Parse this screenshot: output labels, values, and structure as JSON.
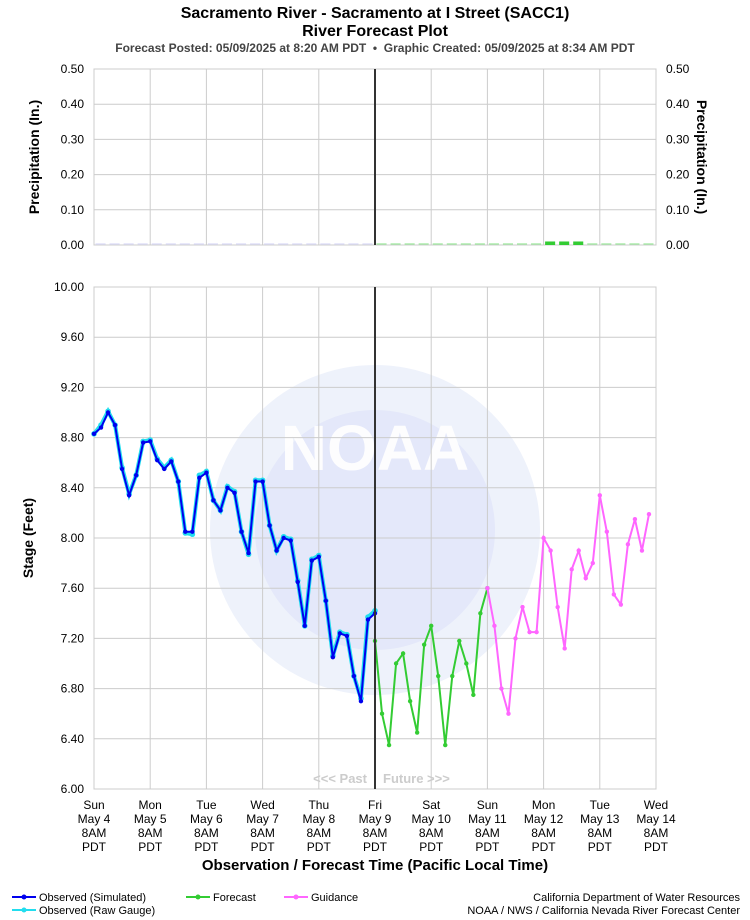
{
  "header": {
    "title": "Sacramento River - Sacramento at I Street (SACC1)",
    "subtitle": "River Forecast Plot",
    "info": "Forecast Posted: 05/09/2025 at 8:20 AM PDT  •  Graphic Created: 05/09/2025 at 8:34 AM PDT"
  },
  "chart_data": [
    {
      "type": "bar",
      "ylabel": "Precipitation (In.)",
      "y2label": "Precipitation (In.)",
      "xlim": [
        "2025-05-04T08:00",
        "2025-05-14T08:00"
      ],
      "ylim": [
        0,
        0.5
      ],
      "yticks": [
        {
          "value": 0,
          "label": "0.00"
        },
        {
          "value": 0.1,
          "label": "0.10"
        },
        {
          "value": 0.2,
          "label": "0.20"
        },
        {
          "value": 0.3,
          "label": "0.30"
        },
        {
          "value": 0.4,
          "label": "0.40"
        },
        {
          "value": 0.5,
          "label": "0.50"
        }
      ],
      "y2lim": [
        0,
        0.5
      ],
      "y2ticks": [
        {
          "value": 0,
          "label": "0.00"
        },
        {
          "value": 0.1,
          "label": "0.10"
        },
        {
          "value": 0.2,
          "label": "0.20"
        },
        {
          "value": 0.3,
          "label": "0.30"
        },
        {
          "value": 0.4,
          "label": "0.40"
        },
        {
          "value": 0.5,
          "label": "0.50"
        }
      ],
      "grid": true,
      "series": [
        {
          "color": "#b4b4f0",
          "x": [
            "2025-05-04T08:00",
            "2025-05-04T14:00",
            "2025-05-04T20:00",
            "2025-05-05T02:00",
            "2025-05-05T08:00",
            "2025-05-05T14:00",
            "2025-05-05T20:00",
            "2025-05-06T02:00",
            "2025-05-06T08:00",
            "2025-05-06T14:00",
            "2025-05-06T20:00",
            "2025-05-07T02:00",
            "2025-05-07T08:00",
            "2025-05-07T14:00",
            "2025-05-07T20:00",
            "2025-05-08T02:00",
            "2025-05-08T08:00",
            "2025-05-08T14:00",
            "2025-05-08T20:00",
            "2025-05-09T02:00"
          ],
          "values": [
            0,
            0,
            0,
            0,
            0,
            0,
            0,
            0,
            0,
            0,
            0,
            0,
            0,
            0,
            0,
            0,
            0,
            0,
            0,
            0
          ]
        },
        {
          "color": "#33cc33",
          "x": [
            "2025-05-09T08:00",
            "2025-05-09T14:00",
            "2025-05-09T20:00",
            "2025-05-10T02:00",
            "2025-05-10T08:00",
            "2025-05-10T14:00",
            "2025-05-10T20:00",
            "2025-05-11T02:00",
            "2025-05-11T08:00",
            "2025-05-11T14:00",
            "2025-05-11T20:00",
            "2025-05-12T02:00",
            "2025-05-12T08:00",
            "2025-05-12T14:00",
            "2025-05-12T20:00",
            "2025-05-13T02:00",
            "2025-05-13T08:00",
            "2025-05-13T14:00",
            "2025-05-13T20:00",
            "2025-05-14T02:00"
          ],
          "values": [
            0,
            0,
            0,
            0,
            0,
            0,
            0,
            0,
            0,
            0,
            0,
            0,
            0.01,
            0.01,
            0.01,
            0,
            0,
            0,
            0,
            0
          ]
        }
      ]
    },
    {
      "type": "line",
      "xlabel": "Observation / Forecast Time (Pacific Local Time)",
      "ylabel": "Stage (Feet)",
      "xlim": [
        "2025-05-04T08:00",
        "2025-05-14T08:00"
      ],
      "xticks": [
        {
          "value": "2025-05-04T08:00",
          "label": [
            "Sun",
            "May 4",
            "8AM",
            "PDT"
          ]
        },
        {
          "value": "2025-05-05T08:00",
          "label": [
            "Mon",
            "May 5",
            "8AM",
            "PDT"
          ]
        },
        {
          "value": "2025-05-06T08:00",
          "label": [
            "Tue",
            "May 6",
            "8AM",
            "PDT"
          ]
        },
        {
          "value": "2025-05-07T08:00",
          "label": [
            "Wed",
            "May 7",
            "8AM",
            "PDT"
          ]
        },
        {
          "value": "2025-05-08T08:00",
          "label": [
            "Thu",
            "May 8",
            "8AM",
            "PDT"
          ]
        },
        {
          "value": "2025-05-09T08:00",
          "label": [
            "Fri",
            "May 9",
            "8AM",
            "PDT"
          ]
        },
        {
          "value": "2025-05-10T08:00",
          "label": [
            "Sat",
            "May 10",
            "8AM",
            "PDT"
          ]
        },
        {
          "value": "2025-05-11T08:00",
          "label": [
            "Sun",
            "May 11",
            "8AM",
            "PDT"
          ]
        },
        {
          "value": "2025-05-12T08:00",
          "label": [
            "Mon",
            "May 12",
            "8AM",
            "PDT"
          ]
        },
        {
          "value": "2025-05-13T08:00",
          "label": [
            "Tue",
            "May 13",
            "8AM",
            "PDT"
          ]
        },
        {
          "value": "2025-05-14T08:00",
          "label": [
            "Wed",
            "May 14",
            "8AM",
            "PDT"
          ]
        }
      ],
      "ylim": [
        6,
        10
      ],
      "yticks": [
        {
          "value": 6,
          "label": "6.00"
        },
        {
          "value": 6.4,
          "label": "6.40"
        },
        {
          "value": 6.8,
          "label": "6.80"
        },
        {
          "value": 7.2,
          "label": "7.20"
        },
        {
          "value": 7.6,
          "label": "7.60"
        },
        {
          "value": 8,
          "label": "8.00"
        },
        {
          "value": 8.4,
          "label": "8.40"
        },
        {
          "value": 8.8,
          "label": "8.80"
        },
        {
          "value": 9.2,
          "label": "9.20"
        },
        {
          "value": 9.6,
          "label": "9.60"
        },
        {
          "value": 10,
          "label": "10.00"
        }
      ],
      "grid": true,
      "annotations": [
        "<<< Past",
        "Future >>>"
      ],
      "watermark": "NOAA",
      "series": [
        {
          "name": "Observed (Raw Gauge)",
          "color": "#22ddee",
          "x": [
            "2025-05-04T08:00",
            "2025-05-04T11:00",
            "2025-05-04T14:00",
            "2025-05-04T17:00",
            "2025-05-04T20:00",
            "2025-05-04T23:00",
            "2025-05-05T02:00",
            "2025-05-05T05:00",
            "2025-05-05T08:00",
            "2025-05-05T11:00",
            "2025-05-05T14:00",
            "2025-05-05T17:00",
            "2025-05-05T20:00",
            "2025-05-05T23:00",
            "2025-05-06T02:00",
            "2025-05-06T05:00",
            "2025-05-06T08:00",
            "2025-05-06T11:00",
            "2025-05-06T14:00",
            "2025-05-06T17:00",
            "2025-05-06T20:00",
            "2025-05-06T23:00",
            "2025-05-07T02:00",
            "2025-05-07T05:00",
            "2025-05-07T08:00",
            "2025-05-07T11:00",
            "2025-05-07T14:00",
            "2025-05-07T17:00",
            "2025-05-07T20:00",
            "2025-05-07T23:00",
            "2025-05-08T02:00",
            "2025-05-08T05:00",
            "2025-05-08T08:00",
            "2025-05-08T11:00",
            "2025-05-08T14:00",
            "2025-05-08T17:00",
            "2025-05-08T20:00",
            "2025-05-08T23:00",
            "2025-05-09T02:00",
            "2025-05-09T05:00",
            "2025-05-09T08:00"
          ],
          "values": [
            8.83,
            8.9,
            9.01,
            8.9,
            8.56,
            8.35,
            8.5,
            8.77,
            8.78,
            8.63,
            8.56,
            8.62,
            8.45,
            8.04,
            8.03,
            8.5,
            8.53,
            8.3,
            8.22,
            8.41,
            8.37,
            8.05,
            7.87,
            8.46,
            8.46,
            8.1,
            7.9,
            8.01,
            7.99,
            7.66,
            7.3,
            7.83,
            7.86,
            7.5,
            7.06,
            7.25,
            7.23,
            6.9,
            6.72,
            7.37,
            7.42
          ]
        },
        {
          "name": "Observed (Simulated)",
          "color": "#0000ee",
          "x": [
            "2025-05-04T08:00",
            "2025-05-04T11:00",
            "2025-05-04T14:00",
            "2025-05-04T17:00",
            "2025-05-04T20:00",
            "2025-05-04T23:00",
            "2025-05-05T02:00",
            "2025-05-05T05:00",
            "2025-05-05T08:00",
            "2025-05-05T11:00",
            "2025-05-05T14:00",
            "2025-05-05T17:00",
            "2025-05-05T20:00",
            "2025-05-05T23:00",
            "2025-05-06T02:00",
            "2025-05-06T05:00",
            "2025-05-06T08:00",
            "2025-05-06T11:00",
            "2025-05-06T14:00",
            "2025-05-06T17:00",
            "2025-05-06T20:00",
            "2025-05-06T23:00",
            "2025-05-07T02:00",
            "2025-05-07T05:00",
            "2025-05-07T08:00",
            "2025-05-07T11:00",
            "2025-05-07T14:00",
            "2025-05-07T17:00",
            "2025-05-07T20:00",
            "2025-05-07T23:00",
            "2025-05-08T02:00",
            "2025-05-08T05:00",
            "2025-05-08T08:00",
            "2025-05-08T11:00",
            "2025-05-08T14:00",
            "2025-05-08T17:00",
            "2025-05-08T20:00",
            "2025-05-08T23:00",
            "2025-05-09T02:00",
            "2025-05-09T05:00",
            "2025-05-09T08:00"
          ],
          "values": [
            8.83,
            8.88,
            9,
            8.9,
            8.55,
            8.34,
            8.5,
            8.76,
            8.77,
            8.62,
            8.55,
            8.61,
            8.45,
            8.05,
            8.05,
            8.48,
            8.52,
            8.3,
            8.22,
            8.4,
            8.36,
            8.05,
            7.88,
            8.45,
            8.45,
            8.1,
            7.9,
            8,
            7.98,
            7.65,
            7.3,
            7.82,
            7.85,
            7.5,
            7.05,
            7.24,
            7.22,
            6.9,
            6.7,
            7.35,
            7.4
          ]
        },
        {
          "name": "Forecast",
          "color": "#33cc33",
          "x": [
            "2025-05-09T08:00",
            "2025-05-09T11:00",
            "2025-05-09T14:00",
            "2025-05-09T17:00",
            "2025-05-09T20:00",
            "2025-05-09T23:00",
            "2025-05-10T02:00",
            "2025-05-10T05:00",
            "2025-05-10T08:00",
            "2025-05-10T11:00",
            "2025-05-10T14:00",
            "2025-05-10T17:00",
            "2025-05-10T20:00",
            "2025-05-10T23:00",
            "2025-05-11T02:00",
            "2025-05-11T05:00",
            "2025-05-11T08:00"
          ],
          "values": [
            7.18,
            6.6,
            6.35,
            7,
            7.08,
            6.7,
            6.45,
            7.15,
            7.3,
            6.9,
            6.35,
            6.9,
            7.18,
            7,
            6.75,
            7.4,
            7.6
          ]
        },
        {
          "name": "Guidance",
          "color": "#ff66ff",
          "x": [
            "2025-05-11T08:00",
            "2025-05-11T11:00",
            "2025-05-11T14:00",
            "2025-05-11T17:00",
            "2025-05-11T20:00",
            "2025-05-11T23:00",
            "2025-05-12T02:00",
            "2025-05-12T05:00",
            "2025-05-12T08:00",
            "2025-05-12T11:00",
            "2025-05-12T14:00",
            "2025-05-12T17:00",
            "2025-05-12T20:00",
            "2025-05-12T23:00",
            "2025-05-13T02:00",
            "2025-05-13T05:00",
            "2025-05-13T08:00",
            "2025-05-13T11:00",
            "2025-05-13T14:00",
            "2025-05-13T17:00",
            "2025-05-13T20:00",
            "2025-05-13T23:00",
            "2025-05-14T02:00",
            "2025-05-14T05:00"
          ],
          "values": [
            7.6,
            7.3,
            6.8,
            6.6,
            7.2,
            7.45,
            7.25,
            7.25,
            8,
            7.9,
            7.45,
            7.12,
            7.75,
            7.9,
            7.68,
            7.8,
            8.34,
            8.05,
            7.55,
            7.47,
            7.95,
            8.15,
            7.9,
            8.19
          ]
        }
      ]
    }
  ],
  "footer": {
    "credits": [
      "California Department of Water Resources",
      "NOAA / NWS / California Nevada River Forecast Center"
    ]
  }
}
